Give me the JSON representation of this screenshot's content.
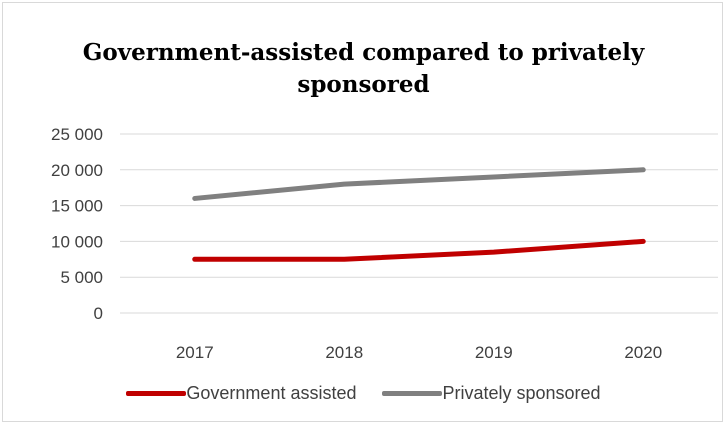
{
  "chart_data": {
    "type": "line",
    "title_lines": [
      "Government-assisted compared to privately",
      "sponsored"
    ],
    "categories": [
      "2017",
      "2018",
      "2019",
      "2020"
    ],
    "y_ticks": [
      "0",
      "5 000",
      "10 000",
      "15 000",
      "20 000",
      "25 000"
    ],
    "ylim": [
      0,
      25000
    ],
    "y_tick_step": 5000,
    "grid": true,
    "legend_position": "bottom",
    "series": [
      {
        "name": "Government assisted",
        "values": [
          7500,
          7500,
          8500,
          10000
        ],
        "color": "#c00000"
      },
      {
        "name": "Privately sponsored",
        "values": [
          16000,
          18000,
          19000,
          20000
        ],
        "color": "#808080"
      }
    ]
  },
  "colors": {
    "gridline": "#d9d9d9",
    "tick_text": "#404040",
    "title_text": "#000000"
  }
}
